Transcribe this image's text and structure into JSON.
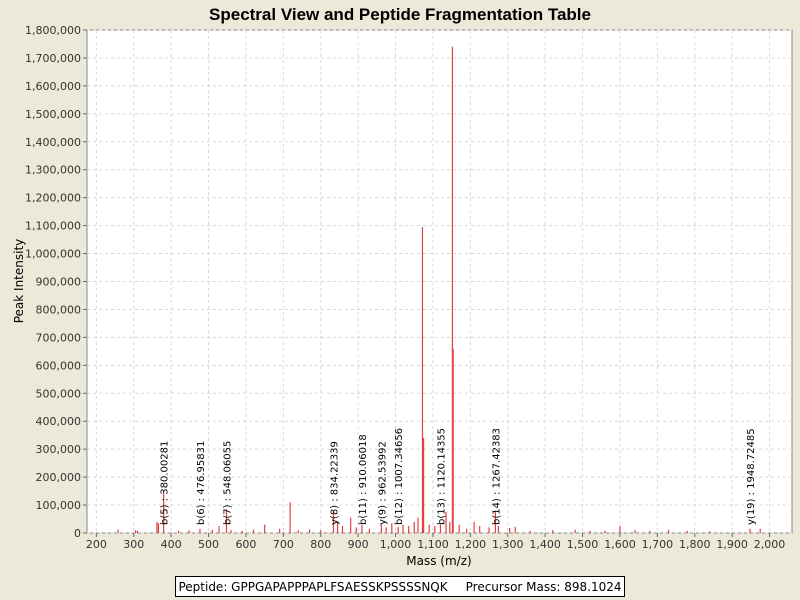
{
  "chart_data": {
    "type": "bar",
    "title": "Spectral View and Peptide Fragmentation Table",
    "xlabel": "Mass (m/z)",
    "ylabel": "Peak Intensity",
    "xlim": [
      175,
      2060
    ],
    "ylim": [
      0,
      1800000
    ],
    "x_ticks": [
      "200",
      "300",
      "400",
      "500",
      "600",
      "700",
      "800",
      "900",
      "1,000",
      "1,100",
      "1,200",
      "1,300",
      "1,400",
      "1,500",
      "1,600",
      "1,700",
      "1,800",
      "1,900",
      "2,000"
    ],
    "y_ticks": [
      "0",
      "100,000",
      "200,000",
      "300,000",
      "400,000",
      "500,000",
      "600,000",
      "700,000",
      "800,000",
      "900,000",
      "1,000,000",
      "1,100,000",
      "1,200,000",
      "1,300,000",
      "1,400,000",
      "1,500,000",
      "1,600,000",
      "1,700,000",
      "1,800,000"
    ],
    "grid": true,
    "peak_color": "#e04040",
    "peaks": [
      {
        "x": 258,
        "y": 12000
      },
      {
        "x": 305,
        "y": 10000
      },
      {
        "x": 310,
        "y": 8000
      },
      {
        "x": 362,
        "y": 40000
      },
      {
        "x": 366,
        "y": 35000
      },
      {
        "x": 380,
        "y": 150000
      },
      {
        "x": 420,
        "y": 8000
      },
      {
        "x": 448,
        "y": 9000
      },
      {
        "x": 477,
        "y": 15000
      },
      {
        "x": 510,
        "y": 12000
      },
      {
        "x": 528,
        "y": 25000
      },
      {
        "x": 548,
        "y": 85000
      },
      {
        "x": 560,
        "y": 10000
      },
      {
        "x": 590,
        "y": 8000
      },
      {
        "x": 620,
        "y": 12000
      },
      {
        "x": 650,
        "y": 30000
      },
      {
        "x": 690,
        "y": 15000
      },
      {
        "x": 718,
        "y": 110000
      },
      {
        "x": 740,
        "y": 10000
      },
      {
        "x": 770,
        "y": 12000
      },
      {
        "x": 800,
        "y": 10000
      },
      {
        "x": 834,
        "y": 80000
      },
      {
        "x": 845,
        "y": 40000
      },
      {
        "x": 858,
        "y": 25000
      },
      {
        "x": 880,
        "y": 55000
      },
      {
        "x": 895,
        "y": 20000
      },
      {
        "x": 910,
        "y": 28000
      },
      {
        "x": 930,
        "y": 15000
      },
      {
        "x": 962,
        "y": 30000
      },
      {
        "x": 975,
        "y": 20000
      },
      {
        "x": 990,
        "y": 35000
      },
      {
        "x": 1007,
        "y": 22000
      },
      {
        "x": 1020,
        "y": 30000
      },
      {
        "x": 1035,
        "y": 25000
      },
      {
        "x": 1050,
        "y": 40000
      },
      {
        "x": 1060,
        "y": 55000
      },
      {
        "x": 1072,
        "y": 1095000
      },
      {
        "x": 1075,
        "y": 340000
      },
      {
        "x": 1090,
        "y": 30000
      },
      {
        "x": 1105,
        "y": 25000
      },
      {
        "x": 1120,
        "y": 30000
      },
      {
        "x": 1135,
        "y": 75000
      },
      {
        "x": 1145,
        "y": 40000
      },
      {
        "x": 1152,
        "y": 1740000
      },
      {
        "x": 1154,
        "y": 660000
      },
      {
        "x": 1170,
        "y": 30000
      },
      {
        "x": 1190,
        "y": 15000
      },
      {
        "x": 1210,
        "y": 40000
      },
      {
        "x": 1225,
        "y": 25000
      },
      {
        "x": 1250,
        "y": 20000
      },
      {
        "x": 1267,
        "y": 80000
      },
      {
        "x": 1275,
        "y": 25000
      },
      {
        "x": 1305,
        "y": 18000
      },
      {
        "x": 1320,
        "y": 22000
      },
      {
        "x": 1360,
        "y": 8000
      },
      {
        "x": 1420,
        "y": 10000
      },
      {
        "x": 1480,
        "y": 12000
      },
      {
        "x": 1520,
        "y": 8000
      },
      {
        "x": 1560,
        "y": 8000
      },
      {
        "x": 1600,
        "y": 25000
      },
      {
        "x": 1640,
        "y": 10000
      },
      {
        "x": 1680,
        "y": 8000
      },
      {
        "x": 1730,
        "y": 12000
      },
      {
        "x": 1780,
        "y": 8000
      },
      {
        "x": 1840,
        "y": 6000
      },
      {
        "x": 1948,
        "y": 15000
      },
      {
        "x": 1975,
        "y": 15000
      }
    ],
    "annotations": [
      {
        "x": 380,
        "label": "b(5) : 380.00281"
      },
      {
        "x": 477,
        "label": "b(6) : 476.95831"
      },
      {
        "x": 548,
        "label": "b(7) : 548.06055"
      },
      {
        "x": 834,
        "label": "y(8) : 834.22339"
      },
      {
        "x": 910,
        "label": "b(11) : 910.06018"
      },
      {
        "x": 962,
        "label": "y(9) : 962.53992"
      },
      {
        "x": 1007,
        "label": "b(12) : 1007.34656"
      },
      {
        "x": 1120,
        "label": "b(13) : 1120.14355"
      },
      {
        "x": 1267,
        "label": "b(14) : 1267.42383"
      },
      {
        "x": 1948,
        "label": "y(19) : 1948.72485"
      }
    ]
  },
  "footer": {
    "peptide_label": "Peptide: GPPGAPAPPPAPLFSAESSKPSSSSNQK",
    "precursor_label": "Precursor Mass: 898.1024"
  }
}
